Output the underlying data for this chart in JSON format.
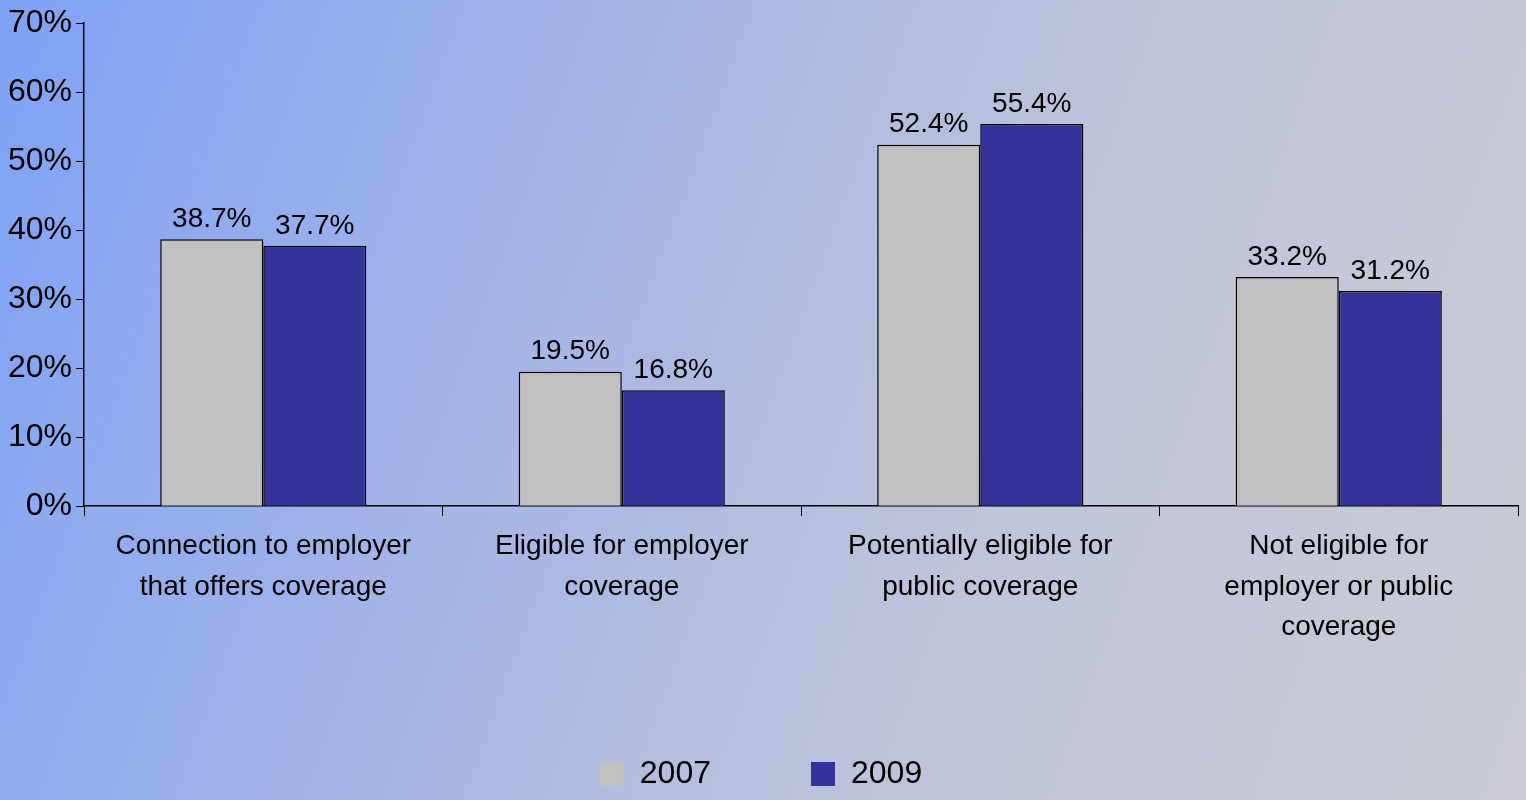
{
  "chart_data": {
    "type": "bar",
    "categories": [
      "Connection to employer\nthat offers coverage",
      "Eligible for employer\ncoverage",
      "Potentially eligible for\npublic coverage",
      "Not eligible for\nemployer or public\ncoverage"
    ],
    "series": [
      {
        "name": "2007",
        "color": "#c0c0c0",
        "values": [
          38.7,
          19.5,
          52.4,
          33.2
        ],
        "value_labels": [
          "38.7%",
          "19.5%",
          "52.4%",
          "33.2%"
        ]
      },
      {
        "name": "2009",
        "color": "#333399",
        "values": [
          37.7,
          16.8,
          55.4,
          31.2
        ],
        "value_labels": [
          "37.7%",
          "16.8%",
          "55.4%",
          "31.2%"
        ]
      }
    ],
    "ylim": [
      0,
      70
    ],
    "yticks": [
      {
        "value": 0,
        "label": "0%"
      },
      {
        "value": 10,
        "label": "10%"
      },
      {
        "value": 20,
        "label": "20%"
      },
      {
        "value": 30,
        "label": "30%"
      },
      {
        "value": 40,
        "label": "40%"
      },
      {
        "value": 50,
        "label": "50%"
      },
      {
        "value": 60,
        "label": "60%"
      },
      {
        "value": 70,
        "label": "70%"
      }
    ],
    "grid": false,
    "legend": "bottom"
  }
}
